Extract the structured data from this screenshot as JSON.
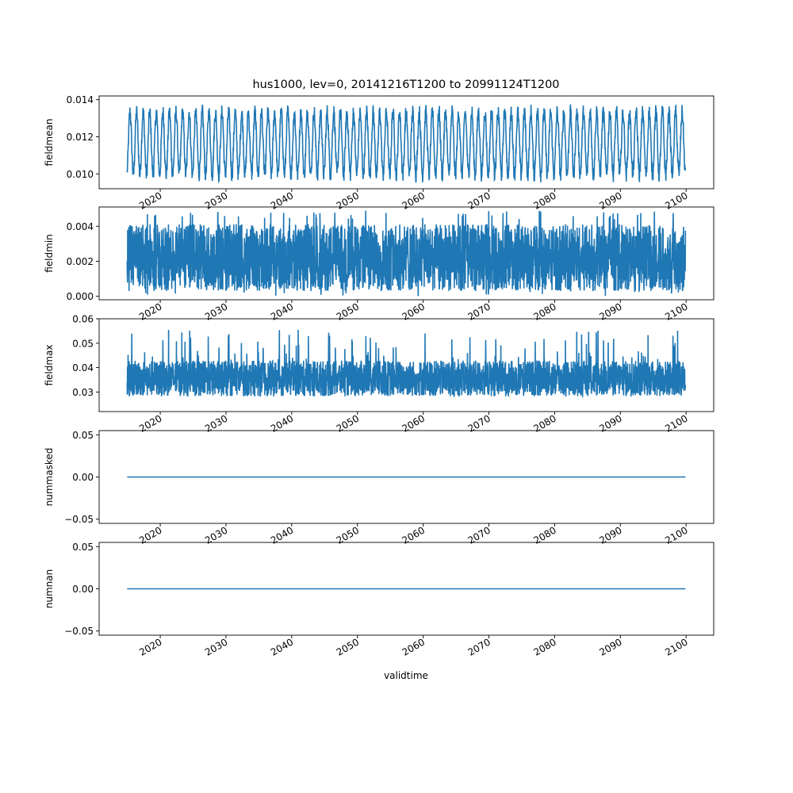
{
  "figure": {
    "title": "hus1000, lev=0, 20141216T1200 to 20991124T1200",
    "xlabel": "validtime"
  },
  "colors": {
    "series": "#1f77b4",
    "axes": "#000000",
    "background": "#ffffff"
  },
  "chart_data": [
    {
      "type": "line",
      "ylabel": "fieldmean",
      "x_range": [
        2014.96,
        2099.9
      ],
      "xlim": [
        2010.7,
        2104.2
      ],
      "ylim": [
        0.0092,
        0.0142
      ],
      "y_ticks": [
        "0.010",
        "0.012",
        "0.014"
      ],
      "x_ticks": [
        "2020",
        "2030",
        "2040",
        "2050",
        "2060",
        "2070",
        "2080",
        "2090",
        "2100"
      ],
      "grid": false,
      "series_style": "seasonal oscillation, annual cycle",
      "value_range": [
        0.0093,
        0.014
      ]
    },
    {
      "type": "line",
      "ylabel": "fieldmin",
      "x_range": [
        2014.96,
        2099.9
      ],
      "xlim": [
        2010.7,
        2104.2
      ],
      "ylim": [
        -0.0002,
        0.0051
      ],
      "y_ticks": [
        "0.000",
        "0.002",
        "0.004"
      ],
      "x_ticks": [
        "2020",
        "2030",
        "2040",
        "2050",
        "2060",
        "2070",
        "2080",
        "2090",
        "2100"
      ],
      "grid": false,
      "series_style": "dense noisy band",
      "value_range": [
        0.0,
        0.0049
      ]
    },
    {
      "type": "line",
      "ylabel": "fieldmax",
      "x_range": [
        2014.96,
        2099.9
      ],
      "xlim": [
        2010.7,
        2104.2
      ],
      "ylim": [
        0.022,
        0.06
      ],
      "y_ticks": [
        "0.03",
        "0.04",
        "0.05",
        "0.06"
      ],
      "x_ticks": [
        "2020",
        "2030",
        "2040",
        "2050",
        "2060",
        "2070",
        "2080",
        "2090",
        "2100"
      ],
      "grid": false,
      "series_style": "dense noisy band with spikes",
      "value_range": [
        0.024,
        0.059
      ]
    },
    {
      "type": "line",
      "ylabel": "nummasked",
      "x_range": [
        2014.96,
        2099.9
      ],
      "xlim": [
        2010.7,
        2104.2
      ],
      "ylim": [
        -0.055,
        0.055
      ],
      "y_ticks": [
        "−0.05",
        "0.00",
        "0.05"
      ],
      "x_ticks": [
        "2020",
        "2030",
        "2040",
        "2050",
        "2060",
        "2070",
        "2080",
        "2090",
        "2100"
      ],
      "grid": false,
      "series_style": "constant",
      "value_range": [
        0.0,
        0.0
      ]
    },
    {
      "type": "line",
      "ylabel": "numnan",
      "x_range": [
        2014.96,
        2099.9
      ],
      "xlim": [
        2010.7,
        2104.2
      ],
      "ylim": [
        -0.055,
        0.055
      ],
      "y_ticks": [
        "−0.05",
        "0.00",
        "0.05"
      ],
      "x_ticks": [
        "2020",
        "2030",
        "2040",
        "2050",
        "2060",
        "2070",
        "2080",
        "2090",
        "2100"
      ],
      "grid": false,
      "series_style": "constant",
      "value_range": [
        0.0,
        0.0
      ]
    }
  ]
}
